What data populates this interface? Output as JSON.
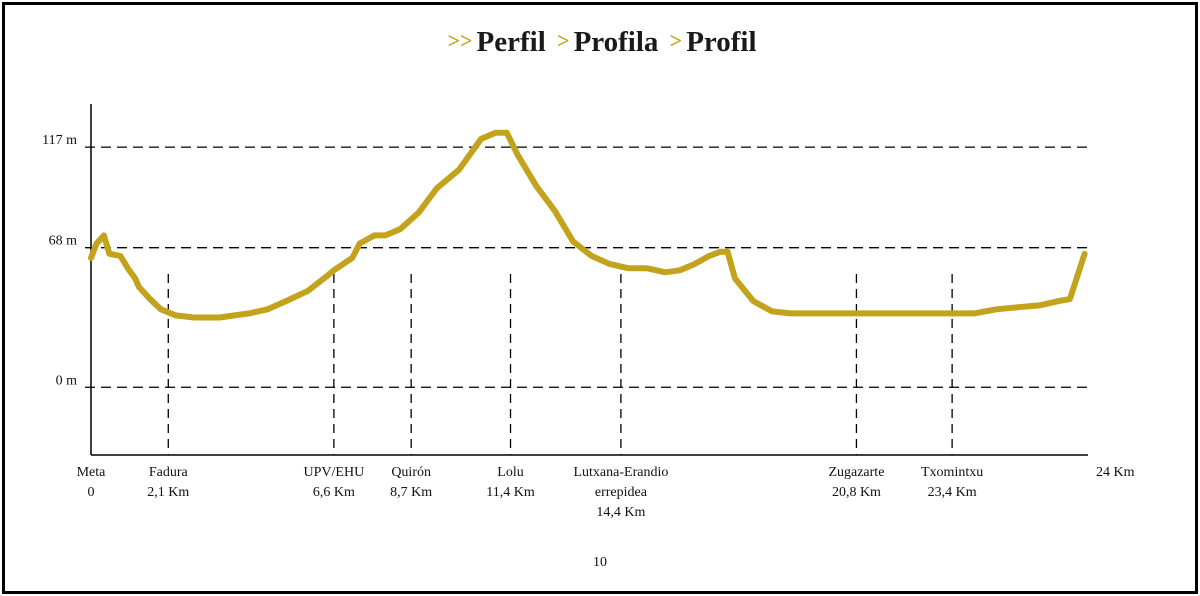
{
  "page": {
    "number": "10"
  },
  "title": {
    "sep1": ">>",
    "t1": "Perfil",
    "sep2": ">",
    "t2": "Profila",
    "sep3": ">",
    "t3": "Profil"
  },
  "colors": {
    "line": "#c3a31b",
    "axis": "#000000",
    "grid": "#000000"
  },
  "chart_data": {
    "type": "area",
    "title": "Perfil > Profila > Profil",
    "xlabel": "",
    "ylabel": "",
    "x_range_km": [
      0,
      24
    ],
    "y_range_m": [
      -33,
      138
    ],
    "grid": "dashed horizontal lines at y ticks; dashed vertical drop lines at waypoints",
    "y_ticks": [
      {
        "value": 0,
        "label": "0 m"
      },
      {
        "value": 68,
        "label": "68 m"
      },
      {
        "value": 117,
        "label": "117 m"
      }
    ],
    "x_end_label": "24 Km",
    "waypoints": [
      {
        "km": 0,
        "name": "Meta",
        "dist": "0",
        "extra": "",
        "drop": false
      },
      {
        "km": 2.1,
        "name": "Fadura",
        "dist": "2,1 Km",
        "extra": "",
        "drop": true
      },
      {
        "km": 6.6,
        "name": "UPV/EHU",
        "dist": "6,6 Km",
        "extra": "",
        "drop": true
      },
      {
        "km": 8.7,
        "name": "Quirón",
        "dist": "8,7 Km",
        "extra": "",
        "drop": true
      },
      {
        "km": 11.4,
        "name": "Lolu",
        "dist": "11,4 Km",
        "extra": "",
        "drop": true
      },
      {
        "km": 14.4,
        "name": "Lutxana-Erandio",
        "dist": "errepidea",
        "extra": "14,4 Km",
        "drop": true
      },
      {
        "km": 20.8,
        "name": "Zugazarte",
        "dist": "20,8 Km",
        "extra": "",
        "drop": true
      },
      {
        "km": 23.4,
        "name": "Txomintxu",
        "dist": "23,4 Km",
        "extra": "",
        "drop": true
      }
    ],
    "series": [
      {
        "values": [
          [
            0.0,
            63
          ],
          [
            0.15,
            70
          ],
          [
            0.35,
            74
          ],
          [
            0.5,
            65
          ],
          [
            0.8,
            64
          ],
          [
            1.0,
            58
          ],
          [
            1.2,
            53
          ],
          [
            1.3,
            49
          ],
          [
            1.6,
            43
          ],
          [
            1.9,
            38
          ],
          [
            2.3,
            35
          ],
          [
            2.8,
            34
          ],
          [
            3.5,
            34
          ],
          [
            3.9,
            35
          ],
          [
            4.3,
            36
          ],
          [
            4.8,
            38
          ],
          [
            5.3,
            42
          ],
          [
            5.9,
            47
          ],
          [
            6.4,
            54
          ],
          [
            6.6,
            57
          ],
          [
            7.1,
            63
          ],
          [
            7.3,
            70
          ],
          [
            7.7,
            74
          ],
          [
            8.0,
            74
          ],
          [
            8.4,
            77
          ],
          [
            8.9,
            85
          ],
          [
            9.4,
            97
          ],
          [
            10.0,
            106
          ],
          [
            10.6,
            121
          ],
          [
            11.0,
            124
          ],
          [
            11.3,
            124
          ],
          [
            11.6,
            113
          ],
          [
            12.1,
            98
          ],
          [
            12.6,
            86
          ],
          [
            13.1,
            71
          ],
          [
            13.6,
            64
          ],
          [
            14.1,
            60
          ],
          [
            14.6,
            58
          ],
          [
            15.1,
            58
          ],
          [
            15.6,
            56
          ],
          [
            16.0,
            57
          ],
          [
            16.4,
            60
          ],
          [
            16.8,
            64
          ],
          [
            17.1,
            66
          ],
          [
            17.3,
            66
          ],
          [
            17.5,
            53
          ],
          [
            18.0,
            42
          ],
          [
            18.5,
            37
          ],
          [
            19.0,
            36
          ],
          [
            20.0,
            36
          ],
          [
            21.0,
            36
          ],
          [
            22.0,
            36
          ],
          [
            22.9,
            36
          ],
          [
            23.5,
            36
          ],
          [
            24.0,
            36
          ],
          [
            24.6,
            38
          ],
          [
            25.2,
            39
          ],
          [
            25.8,
            40
          ],
          [
            26.3,
            42
          ],
          [
            26.6,
            43
          ],
          [
            27.0,
            65
          ]
        ]
      }
    ]
  }
}
